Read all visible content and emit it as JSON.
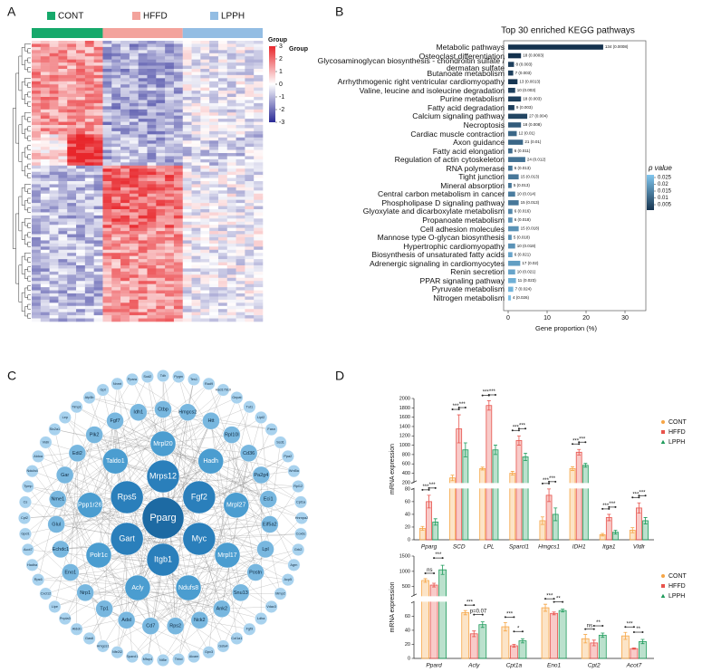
{
  "panels": [
    "A",
    "B",
    "C",
    "D"
  ],
  "heatmap": {
    "groups": [
      {
        "name": "CONT",
        "color": "#16a96b"
      },
      {
        "name": "HFFD",
        "color": "#f3a39c"
      },
      {
        "name": "LPPH",
        "color": "#93bde3"
      }
    ],
    "legend_title": "Group",
    "group_label": "Group",
    "colors": [
      "#2a2a96",
      "#ffffff",
      "#e8262b"
    ],
    "clim": [
      -3,
      3
    ],
    "scale_ticks": [
      3,
      2,
      1,
      0,
      -1,
      -2,
      -3
    ]
  },
  "chart_data": [
    {
      "type": "hbar",
      "title": "Top 30 enriched KEGG pathways",
      "xlabel": "Gene proportion (%)",
      "categories": [
        "Metabolic pathways",
        "Osteoclast differentiation",
        "Glycosaminoglycan biosynthesis - chondroitin sulfate / dermatan sulfate",
        "Butanoate metabolism",
        "Arrhythmogenic right ventricular cardiomyopathy",
        "Valine, leucine and isoleucine degradation",
        "Purine metabolism",
        "Fatty acid degradation",
        "Calcium signaling pathway",
        "Necroptosis",
        "Cardiac muscle contraction",
        "Axon guidance",
        "Fatty acid elongation",
        "Regulation of actin cytoskeleton",
        "RNA polymerase",
        "Tight junction",
        "Mineral absorption",
        "Central carbon metabolism in cancer",
        "Phospholipase D signaling pathway",
        "Glyoxylate and dicarboxylate metabolism",
        "Propanoate metabolism",
        "Cell adhesion molecules",
        "Mannose type O-glycan biosynthesis",
        "Hypertrophic cardiomyopathy",
        "Biosynthesis of unsaturated fatty acids",
        "Adrenergic signaling in cardiomyocytes",
        "Renin secretion",
        "PPAR signaling pathway",
        "Pyruvate metabolism",
        "Nitrogen metabolism"
      ],
      "values": [
        24.4,
        3.3,
        1.5,
        1.3,
        2.4,
        1.8,
        3.3,
        1.6,
        4.9,
        3.3,
        2.2,
        3.8,
        1.1,
        4.4,
        1.1,
        2.7,
        0.9,
        1.8,
        2.7,
        1.1,
        1.1,
        2.7,
        0.9,
        1.8,
        1.1,
        3.1,
        1.8,
        2.0,
        1.3,
        0.7
      ],
      "pvalues": [
        0.0008,
        0.0003,
        0.003,
        0.003,
        0.0013,
        0.003,
        0.003,
        0.003,
        0.004,
        0.008,
        0.01,
        0.01,
        0.011,
        0.012,
        0.013,
        0.013,
        0.013,
        0.014,
        0.013,
        0.016,
        0.018,
        0.018,
        0.018,
        0.018,
        0.021,
        0.02,
        0.021,
        0.023,
        0.024,
        0.026
      ],
      "bar_labels": [
        "134 (0.0008)",
        "18 (0.0003)",
        "8 (0.003)",
        "7 (0.003)",
        "13 (0.0013)",
        "10 (0.003)",
        "18 (0.003)",
        "9 (0.003)",
        "27 (0.004)",
        "18 (0.008)",
        "12 (0.01)",
        "21 (0.01)",
        "6 (0.011)",
        "24 (0.012)",
        "6 (0.013)",
        "15 (0.013)",
        "5 (0.013)",
        "10 (0.014)",
        "15 (0.013)",
        "6 (0.016)",
        "6 (0.018)",
        "15 (0.018)",
        "5 (0.018)",
        "10 (0.018)",
        "6 (0.021)",
        "17 (0.02)",
        "10 (0.021)",
        "11 (0.023)",
        "7 (0.024)",
        "4 (0.026)"
      ],
      "xlim": [
        0,
        30
      ],
      "xticks": [
        0,
        10,
        20,
        30
      ],
      "legend_title": "p value",
      "color_scale": [
        "#163450",
        "#80c6ee"
      ],
      "clim": [
        0.001,
        0.027
      ],
      "cticks": [
        0.025,
        0.02,
        0.015,
        0.01,
        0.005
      ]
    },
    {
      "type": "grouped-bar",
      "ylabel": "mRNA expression",
      "categories": [
        "Pparg",
        "SCD",
        "LPL",
        "Sparcl1",
        "Hmgcs1",
        "IDH1",
        "Itga1",
        "Vldlr"
      ],
      "series": [
        {
          "name": "CONT",
          "color": "#f6a545",
          "values": [
            18,
            300,
            500,
            400,
            30,
            500,
            8,
            15
          ],
          "errors": [
            3,
            60,
            30,
            40,
            6,
            40,
            2,
            4
          ]
        },
        {
          "name": "HFFD",
          "color": "#e8534c",
          "values": [
            60,
            1350,
            1850,
            1100,
            70,
            850,
            35,
            50
          ],
          "errors": [
            10,
            300,
            100,
            100,
            10,
            60,
            5,
            8
          ]
        },
        {
          "name": "LPPH",
          "color": "#1e9b5b",
          "values": [
            28,
            900,
            900,
            750,
            40,
            570,
            12,
            30
          ],
          "errors": [
            5,
            150,
            100,
            80,
            10,
            40,
            3,
            5
          ]
        }
      ],
      "y_segments": [
        {
          "ylim": [
            0,
            80
          ],
          "yticks": [
            0,
            20,
            40,
            60,
            80
          ]
        },
        {
          "ylim": [
            200,
            2000
          ],
          "yticks": [
            200,
            400,
            600,
            800,
            1000,
            1200,
            1400,
            1600,
            1800,
            2000
          ]
        }
      ],
      "significance": [
        [
          "***",
          "***"
        ],
        [
          "***",
          "***"
        ],
        [
          "***",
          "***"
        ],
        [
          "***",
          "***"
        ],
        [
          "***",
          "***"
        ],
        [
          "***",
          "***"
        ],
        [
          "***",
          "***"
        ],
        [
          "***",
          "***"
        ]
      ],
      "legend": "right"
    },
    {
      "type": "grouped-bar",
      "ylabel": "mRNA expression",
      "categories": [
        "Ppard",
        "Acly",
        "Cpt1a",
        "Eno1",
        "Cpt2",
        "Acot7"
      ],
      "series": [
        {
          "name": "CONT",
          "color": "#f6a545",
          "values": [
            700,
            65,
            45,
            72,
            28,
            32
          ],
          "errors": [
            60,
            3,
            6,
            5,
            6,
            5
          ]
        },
        {
          "name": "HFFD",
          "color": "#e8534c",
          "values": [
            550,
            35,
            18,
            64,
            22,
            14
          ],
          "errors": [
            60,
            4,
            2,
            2,
            4,
            1
          ]
        },
        {
          "name": "LPPH",
          "color": "#1e9b5b",
          "values": [
            1050,
            48,
            25,
            68,
            33,
            24
          ],
          "errors": [
            150,
            4,
            3,
            2,
            3,
            3
          ]
        }
      ],
      "y_segments": [
        {
          "ylim": [
            0,
            80
          ],
          "yticks": [
            0,
            20,
            40,
            60
          ]
        },
        {
          "ylim": [
            200,
            1500
          ],
          "yticks": [
            500,
            1000,
            1500
          ]
        }
      ],
      "significance": [
        [
          "ns",
          "***"
        ],
        [
          "***",
          "p=0.07"
        ],
        [
          "***",
          "*"
        ],
        [
          "***",
          "**"
        ],
        [
          "ns",
          "**"
        ],
        [
          "***",
          "**"
        ]
      ],
      "legend": "right"
    }
  ],
  "network": {
    "center": "Pparg",
    "ring1": [
      "Mrps12",
      "Fgf2",
      "Myc",
      "Itgb1",
      "Gart",
      "Rps5"
    ],
    "ring2": [
      "Mrpl20",
      "Hadh",
      "Mrpl27",
      "Mrpl17",
      "Ndufs8",
      "Acly",
      "Polr1c",
      "Ppp1r26",
      "Taldo1"
    ],
    "ring3": [
      "Ctbp",
      "Hmgcs2",
      "Htt",
      "Rpl10l",
      "Cd36",
      "Pa2g4",
      "Eci1",
      "Eif5a2",
      "Lpl",
      "Postn",
      "Snu13",
      "Ank2",
      "Nck2",
      "Rps2",
      "Cd7",
      "Adsl",
      "Tp1",
      "Nrp1",
      "Eno1",
      "Echdc1",
      "Glul",
      "Nme1",
      "Gar",
      "Edi2",
      "Plk2",
      "Fgf7",
      "Idh1"
    ],
    "outer": [
      "Tdh",
      "Pygm",
      "Tes1",
      "Rad9",
      "Hsd17b10",
      "Gnpat",
      "Tut1",
      "Lipt2",
      "Fasn",
      "Scd1",
      "Ppa2",
      "Wnt5a",
      "Rpl12",
      "Cpt1a",
      "Hnrnpa2",
      "Cox6c",
      "Grb2",
      "Agrn",
      "Acp5",
      "Mmp2",
      "Vdac3",
      "Ldha",
      "Fgf9",
      "Col1a1",
      "Gsta4",
      "Gpx3",
      "Alcam",
      "Thbd",
      "Nt5e",
      "Mfap4",
      "Sparcl1",
      "Nfe2l2",
      "Hmgcs1",
      "Gas6",
      "Aldob",
      "Pnpla3",
      "Lipe",
      "Cxcl12",
      "Rps6",
      "Hadha",
      "Acot7",
      "Gpd1",
      "Cpt2",
      "Cs",
      "Tymp",
      "Ndufa4",
      "Aldoa",
      "Vldlr",
      "Slc2a1",
      "Lep",
      "Timp1",
      "Atp5b",
      "Gpt",
      "Nnmt",
      "Ppara",
      "Sod2"
    ]
  }
}
